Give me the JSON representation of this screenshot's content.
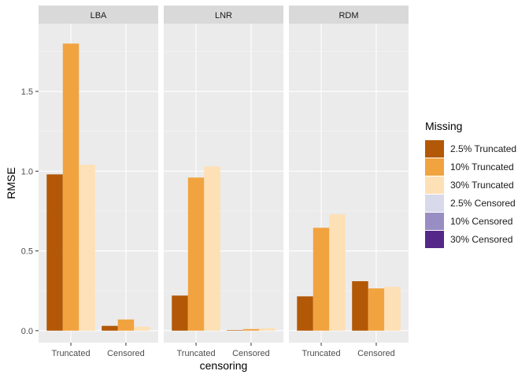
{
  "chart_data": {
    "type": "bar",
    "xlabel": "censoring",
    "ylabel": "RMSE",
    "ylim": [
      0,
      1.85
    ],
    "yticks": [
      0.0,
      0.5,
      1.0,
      1.5
    ],
    "ytick_labels": [
      "0.0",
      "0.5",
      "1.0",
      "1.5"
    ],
    "categories": [
      "Truncated",
      "Censored"
    ],
    "facets": [
      {
        "title": "LBA",
        "groups": [
          {
            "category": "Truncated",
            "values": [
              0.98,
              1.8,
              1.04
            ]
          },
          {
            "category": "Censored",
            "values": [
              0.03,
              0.07,
              0.025
            ]
          }
        ]
      },
      {
        "title": "LNR",
        "groups": [
          {
            "category": "Truncated",
            "values": [
              0.22,
              0.96,
              1.03
            ]
          },
          {
            "category": "Censored",
            "values": [
              0.003,
              0.01,
              0.015
            ]
          }
        ]
      },
      {
        "title": "RDM",
        "groups": [
          {
            "category": "Truncated",
            "values": [
              0.215,
              0.645,
              0.73
            ]
          },
          {
            "category": "Censored",
            "values": [
              0.31,
              0.265,
              0.275
            ]
          }
        ]
      }
    ],
    "legend": {
      "title": "Missing",
      "position": "right",
      "items": [
        {
          "label": "2.5% Truncated",
          "color": "#B35806"
        },
        {
          "label": "10% Truncated",
          "color": "#F1A340"
        },
        {
          "label": "30% Truncated",
          "color": "#FEE0B6"
        },
        {
          "label": "2.5% Censored",
          "color": "#D8DAEB"
        },
        {
          "label": "10% Censored",
          "color": "#998EC3"
        },
        {
          "label": "30% Censored",
          "color": "#542788"
        }
      ]
    },
    "grid": true
  }
}
